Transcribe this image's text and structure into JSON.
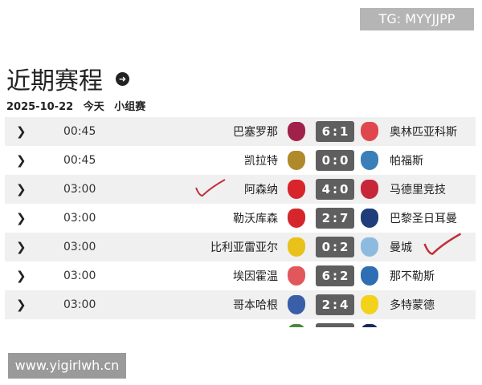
{
  "watermarks": {
    "top": "TG: MYYJJPP",
    "bottom": "www.yigirlwh.cn"
  },
  "header": {
    "title": "近期赛程",
    "date": "2025-10-22",
    "day": "今天",
    "stage": "小组赛"
  },
  "matches": [
    {
      "time": "00:45",
      "home": "巴塞罗那",
      "score": "6:1",
      "away": "奥林匹亚科斯",
      "home_color": "#a0224a",
      "away_color": "#e0474c"
    },
    {
      "time": "00:45",
      "home": "凯拉特",
      "score": "0:0",
      "away": "帕福斯",
      "home_color": "#b08a2a",
      "away_color": "#3a7fb8"
    },
    {
      "time": "03:00",
      "home": "阿森纳",
      "score": "4:0",
      "away": "马德里竞技",
      "home_color": "#d8242b",
      "away_color": "#c6283a",
      "checked": "home"
    },
    {
      "time": "03:00",
      "home": "勒沃库森",
      "score": "2:7",
      "away": "巴黎圣日耳曼",
      "home_color": "#d5262c",
      "away_color": "#1f3d7a"
    },
    {
      "time": "03:00",
      "home": "比利亚雷亚尔",
      "score": "0:2",
      "away": "曼城",
      "home_color": "#e8c21b",
      "away_color": "#8dbbe0",
      "checked": "away"
    },
    {
      "time": "03:00",
      "home": "埃因霍温",
      "score": "6:2",
      "away": "那不勒斯",
      "home_color": "#e2575b",
      "away_color": "#2f6db5"
    },
    {
      "time": "03:00",
      "home": "哥本哈根",
      "score": "2:4",
      "away": "多特蒙德",
      "home_color": "#3a5ea8",
      "away_color": "#f2d21a"
    },
    {
      "time": "",
      "home": "",
      "score": "",
      "away": "",
      "home_color": "#4a8a3a",
      "away_color": "#1b2a5a"
    }
  ]
}
